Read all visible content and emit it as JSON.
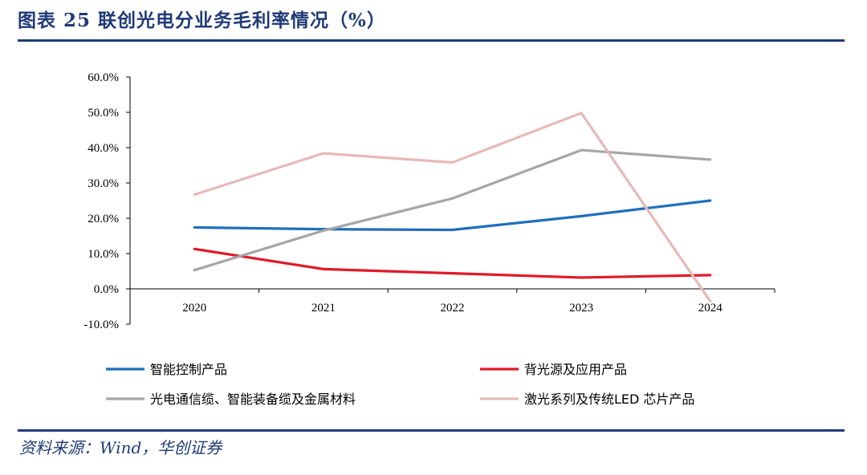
{
  "title": "图表 25   联创光电分业务毛利率情况（%）",
  "source": "资料来源：Wind，华创证券",
  "chart_data": {
    "type": "line",
    "categories": [
      "2020",
      "2021",
      "2022",
      "2023",
      "2024"
    ],
    "ylim": [
      -10,
      60
    ],
    "ytick_values": [
      -10,
      0,
      10,
      20,
      30,
      40,
      50,
      60
    ],
    "ytick_labels": [
      "-10.0%",
      "0.0%",
      "10.0%",
      "20.0%",
      "30.0%",
      "40.0%",
      "50.0%",
      "60.0%"
    ],
    "grid": false,
    "legend_position": "bottom",
    "series": [
      {
        "name": "智能控制产品",
        "color": "#1f6fbd",
        "values": [
          17.4,
          16.9,
          16.7,
          20.6,
          25.0
        ]
      },
      {
        "name": "背光源及应用产品",
        "color": "#e0192a",
        "values": [
          11.3,
          5.6,
          4.4,
          3.2,
          3.9
        ]
      },
      {
        "name": "光电通信缆、智能装备缆及金属材料",
        "color": "#a6a6a6",
        "values": [
          5.3,
          16.5,
          25.6,
          39.3,
          36.6
        ]
      },
      {
        "name": "激光系列及传统LED 芯片产品",
        "color": "#e6b9b8",
        "values": [
          26.7,
          38.4,
          35.8,
          49.8,
          -3.5
        ]
      }
    ]
  }
}
